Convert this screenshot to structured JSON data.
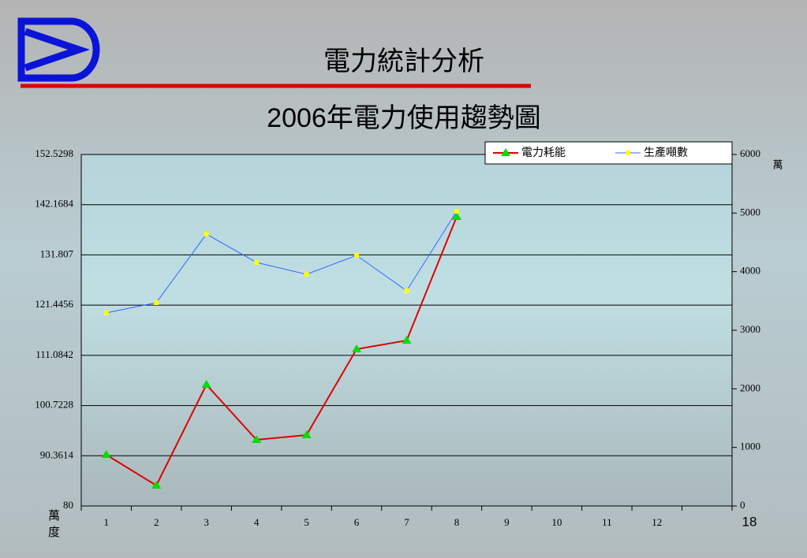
{
  "slide_title": "電力統計分析",
  "page_number": "18",
  "chart_data": {
    "type": "line",
    "title": "2006年電力使用趨勢圖",
    "categories": [
      "1",
      "2",
      "3",
      "4",
      "5",
      "6",
      "7",
      "8",
      "9",
      "10",
      "11",
      "12",
      null
    ],
    "series": [
      {
        "name": "電力耗能",
        "color": "#e00000",
        "marker": "triangle",
        "marker_color": "#00dd00",
        "values": [
          90.57,
          84.23,
          105.04,
          93.66,
          94.64,
          112.36,
          114.15,
          139.68,
          null,
          null,
          null,
          null,
          null
        ]
      },
      {
        "name": "生產噸數",
        "color": "#3366ff",
        "marker": "square",
        "marker_color": "#ffff00",
        "axis": "y2",
        "values": [
          3296,
          3471,
          4641,
          4157,
          3955,
          4278,
          3673,
          5031,
          null,
          null,
          null,
          null,
          null
        ]
      }
    ],
    "ylabel": "萬度",
    "y2label": "萬",
    "ylim": [
      80,
      152.5298
    ],
    "yticks": [
      80,
      90.3614,
      100.7228,
      111.0842,
      121.4456,
      131.807,
      142.1684,
      152.5298
    ],
    "y2lim": [
      0,
      6000
    ],
    "y2ticks": [
      0,
      1000,
      2000,
      3000,
      4000,
      5000,
      6000
    ],
    "grid": true,
    "legend": "top-right"
  }
}
